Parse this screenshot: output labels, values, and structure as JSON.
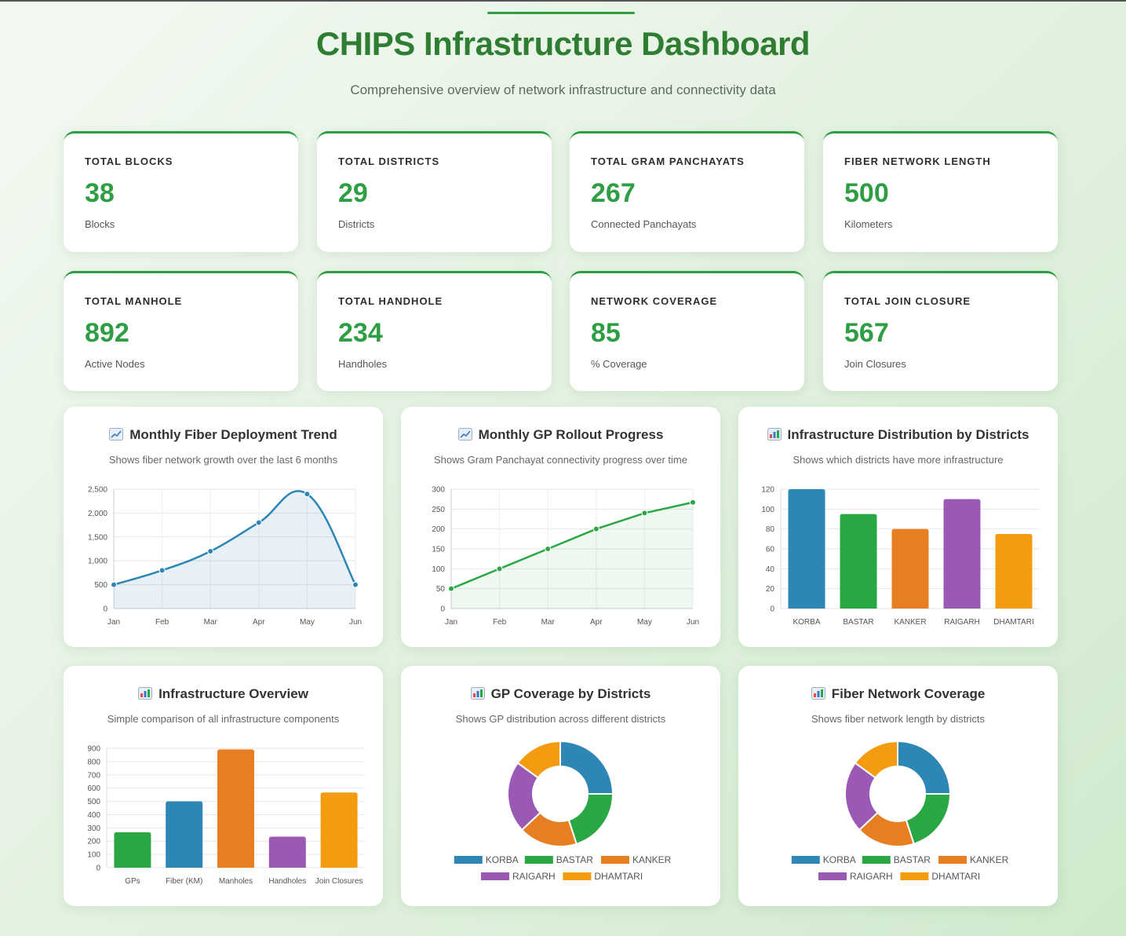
{
  "header": {
    "title": "CHIPS Infrastructure Dashboard",
    "subtitle": "Comprehensive overview of network infrastructure and connectivity data"
  },
  "stats": [
    {
      "label": "TOTAL BLOCKS",
      "value": "38",
      "unit": "Blocks"
    },
    {
      "label": "TOTAL DISTRICTS",
      "value": "29",
      "unit": "Districts"
    },
    {
      "label": "TOTAL GRAM PANCHAYATS",
      "value": "267",
      "unit": "Connected Panchayats"
    },
    {
      "label": "FIBER NETWORK LENGTH",
      "value": "500",
      "unit": "Kilometers"
    },
    {
      "label": "TOTAL MANHOLE",
      "value": "892",
      "unit": "Active Nodes"
    },
    {
      "label": "TOTAL HANDHOLE",
      "value": "234",
      "unit": "Handholes"
    },
    {
      "label": "NETWORK COVERAGE",
      "value": "85",
      "unit": "% Coverage"
    },
    {
      "label": "TOTAL JOIN CLOSURE",
      "value": "567",
      "unit": "Join Closures"
    }
  ],
  "colors": {
    "accent": "#2e9e44",
    "title": "#2f7d32",
    "blue": "#2e86b5",
    "green": "#2aa745",
    "orange": "#e67e22",
    "purple": "#9b59b6",
    "yellow": "#f39c12"
  },
  "chart_data": [
    {
      "type": "area",
      "icon": "chart-up-icon",
      "title": "Monthly Fiber Deployment Trend",
      "subtitle": "Shows fiber network growth over the last 6 months",
      "categories": [
        "Jan",
        "Feb",
        "Mar",
        "Apr",
        "May",
        "Jun"
      ],
      "values": [
        500,
        800,
        1200,
        1800,
        2400,
        500
      ],
      "yticks": [
        "0",
        "500",
        "1,000",
        "1,500",
        "2,000",
        "2,500"
      ],
      "ylim": [
        0,
        2500
      ],
      "smooth": true,
      "grid": true
    },
    {
      "type": "line",
      "icon": "chart-up-icon",
      "title": "Monthly GP Rollout Progress",
      "subtitle": "Shows Gram Panchayat connectivity progress over time",
      "categories": [
        "Jan",
        "Feb",
        "Mar",
        "Apr",
        "May",
        "Jun"
      ],
      "values": [
        50,
        100,
        150,
        200,
        240,
        267
      ],
      "yticks": [
        "0",
        "50",
        "100",
        "150",
        "200",
        "250",
        "300"
      ],
      "ylim": [
        0,
        300
      ],
      "grid": true
    },
    {
      "type": "bar",
      "icon": "bar-chart-icon",
      "title": "Infrastructure Distribution by Districts",
      "subtitle": "Shows which districts have more infrastructure",
      "categories": [
        "KORBA",
        "BASTAR",
        "KANKER",
        "RAIGARH",
        "DHAMTARI"
      ],
      "values": [
        120,
        95,
        80,
        110,
        75
      ],
      "yticks": [
        "0",
        "20",
        "40",
        "60",
        "80",
        "100",
        "120"
      ],
      "ylim": [
        0,
        120
      ],
      "grid": true
    },
    {
      "type": "bar",
      "icon": "bar-chart-icon",
      "title": "Infrastructure Overview",
      "subtitle": "Simple comparison of all infrastructure components",
      "categories": [
        "GPs",
        "Fiber (KM)",
        "Manholes",
        "Handholes",
        "Join Closures"
      ],
      "values": [
        267,
        500,
        892,
        234,
        567
      ],
      "yticks": [
        "0",
        "100",
        "200",
        "300",
        "400",
        "500",
        "600",
        "700",
        "800",
        "900"
      ],
      "ylim": [
        0,
        900
      ],
      "grid": true
    },
    {
      "type": "pie",
      "icon": "bar-chart-icon",
      "title": "GP Coverage by Districts",
      "subtitle": "Shows GP distribution across different districts",
      "categories": [
        "KORBA",
        "BASTAR",
        "KANKER",
        "RAIGARH",
        "DHAMTARI"
      ],
      "values": [
        25,
        20,
        18,
        22,
        15
      ],
      "legend_position": "bottom"
    },
    {
      "type": "pie",
      "icon": "bar-chart-icon",
      "title": "Fiber Network Coverage",
      "subtitle": "Shows fiber network length by districts",
      "categories": [
        "KORBA",
        "BASTAR",
        "KANKER",
        "RAIGARH",
        "DHAMTARI"
      ],
      "values": [
        25,
        20,
        18,
        22,
        15
      ],
      "legend_position": "bottom"
    }
  ]
}
